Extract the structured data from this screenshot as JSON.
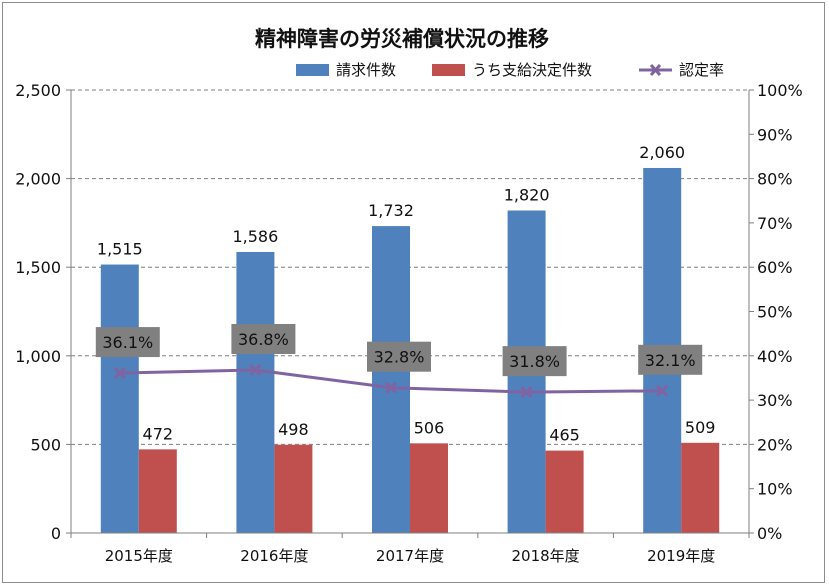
{
  "chart_data": {
    "type": "bar",
    "title": "精神障害の労災補償状況の推移",
    "categories": [
      "2015年度",
      "2016年度",
      "2017年度",
      "2018年度",
      "2019年度"
    ],
    "series": [
      {
        "name": "請求件数",
        "type": "bar",
        "axis": "left",
        "color": "#4f81bd",
        "values": [
          1515,
          1586,
          1732,
          1820,
          2060
        ],
        "labels": [
          "1,515",
          "1,586",
          "1,732",
          "1,820",
          "2,060"
        ]
      },
      {
        "name": "うち支給決定件数",
        "type": "bar",
        "axis": "left",
        "color": "#c0504d",
        "values": [
          472,
          498,
          506,
          465,
          509
        ],
        "labels": [
          "472",
          "498",
          "506",
          "465",
          "509"
        ]
      },
      {
        "name": "認定率",
        "type": "line",
        "axis": "right",
        "color": "#8064a2",
        "marker": "x",
        "values": [
          36.1,
          36.8,
          32.8,
          31.8,
          32.1
        ],
        "labels": [
          "36.1%",
          "36.8%",
          "32.8%",
          "31.8%",
          "32.1%"
        ]
      }
    ],
    "y_left": {
      "range": [
        0,
        2500
      ],
      "ticks": [
        0,
        500,
        1000,
        1500,
        2000,
        2500
      ],
      "tick_labels": [
        "0",
        "500",
        "1,000",
        "1,500",
        "2,000",
        "2,500"
      ]
    },
    "y_right": {
      "range": [
        0,
        100
      ],
      "ticks": [
        0,
        10,
        20,
        30,
        40,
        50,
        60,
        70,
        80,
        90,
        100
      ],
      "tick_labels": [
        "0%",
        "10%",
        "20%",
        "30%",
        "40%",
        "50%",
        "60%",
        "70%",
        "80%",
        "90%",
        "100%"
      ]
    },
    "gridlines": "dashed",
    "legend_position": "top-right",
    "rate_label_box_color": "#808080"
  }
}
